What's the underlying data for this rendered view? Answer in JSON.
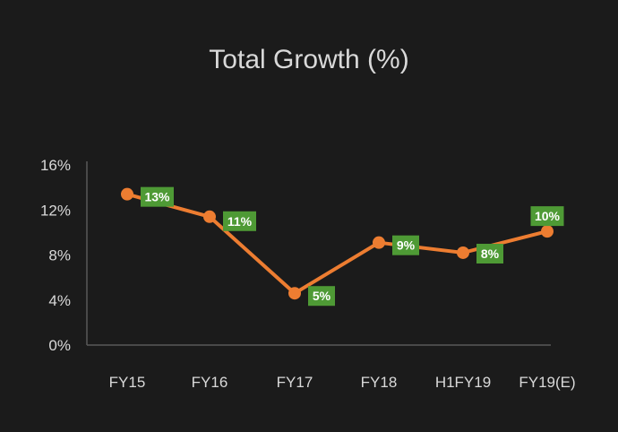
{
  "chart_data": {
    "type": "line",
    "title": "Total Growth (%)",
    "xlabel": "",
    "ylabel": "",
    "categories": [
      "FY15",
      "FY16",
      "FY17",
      "FY18",
      "H1FY19",
      "FY19(E)"
    ],
    "series": [
      {
        "name": "Total Growth",
        "values": [
          13.4,
          11.4,
          4.6,
          9.1,
          8.2,
          10.1
        ],
        "labels": [
          "13%",
          "11%",
          "5%",
          "9%",
          "8%",
          "10%"
        ]
      }
    ],
    "ylim": [
      0,
      16
    ],
    "yticks": [
      0,
      4,
      8,
      12,
      16
    ],
    "ytick_labels": [
      "0%",
      "4%",
      "8%",
      "12%",
      "16%"
    ],
    "grid": false,
    "legend": "none",
    "colors": {
      "line": "#ed7d31",
      "label_bg": "#4e9a35",
      "background": "#1b1b1b",
      "axis": "#595959"
    }
  }
}
